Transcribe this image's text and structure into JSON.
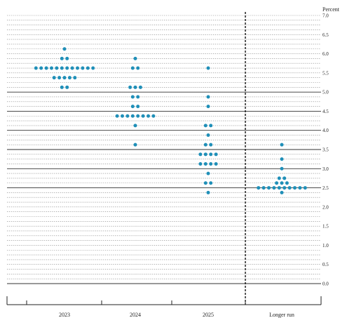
{
  "chart_data": {
    "type": "scatter",
    "subtype": "dot-plot",
    "ylabel": "Percent",
    "ylim": [
      0,
      7
    ],
    "y_minor_step": 0.125,
    "y_major_step": 0.5,
    "y_ticks": [
      "0.0",
      "0.5",
      "1.0",
      "1.5",
      "2.0",
      "2.5",
      "3.0",
      "3.5",
      "4.0",
      "4.5",
      "5.0",
      "5.5",
      "6.0",
      "6.5",
      "7.0"
    ],
    "categories": [
      "2023",
      "2024",
      "2025",
      "Longer run"
    ],
    "divider_after_category": "2025",
    "dot_color": "#1f8fb8",
    "grid": "dotted minor lines every 0.125, solid lines at 2.5–5.0",
    "series": [
      {
        "category": "2023",
        "points": [
          {
            "y": 6.125,
            "count": 1
          },
          {
            "y": 5.875,
            "count": 2
          },
          {
            "y": 5.625,
            "count": 12
          },
          {
            "y": 5.375,
            "count": 5
          },
          {
            "y": 5.125,
            "count": 2
          }
        ]
      },
      {
        "category": "2024",
        "points": [
          {
            "y": 5.875,
            "count": 1
          },
          {
            "y": 5.625,
            "count": 2
          },
          {
            "y": 5.125,
            "count": 3
          },
          {
            "y": 4.875,
            "count": 2
          },
          {
            "y": 4.625,
            "count": 2
          },
          {
            "y": 4.375,
            "count": 8
          },
          {
            "y": 4.125,
            "count": 1
          },
          {
            "y": 3.625,
            "count": 1
          }
        ]
      },
      {
        "category": "2025",
        "points": [
          {
            "y": 5.625,
            "count": 1
          },
          {
            "y": 4.875,
            "count": 1
          },
          {
            "y": 4.625,
            "count": 1
          },
          {
            "y": 4.125,
            "count": 2
          },
          {
            "y": 3.875,
            "count": 1
          },
          {
            "y": 3.625,
            "count": 2
          },
          {
            "y": 3.375,
            "count": 4
          },
          {
            "y": 3.125,
            "count": 4
          },
          {
            "y": 2.875,
            "count": 1
          },
          {
            "y": 2.625,
            "count": 2
          },
          {
            "y": 2.375,
            "count": 1
          }
        ]
      },
      {
        "category": "Longer run",
        "points": [
          {
            "y": 3.625,
            "count": 1
          },
          {
            "y": 3.25,
            "count": 1
          },
          {
            "y": 3.0,
            "count": 1
          },
          {
            "y": 2.75,
            "count": 2
          },
          {
            "y": 2.625,
            "count": 3
          },
          {
            "y": 2.5,
            "count": 10
          },
          {
            "y": 2.375,
            "count": 1
          }
        ]
      }
    ]
  }
}
